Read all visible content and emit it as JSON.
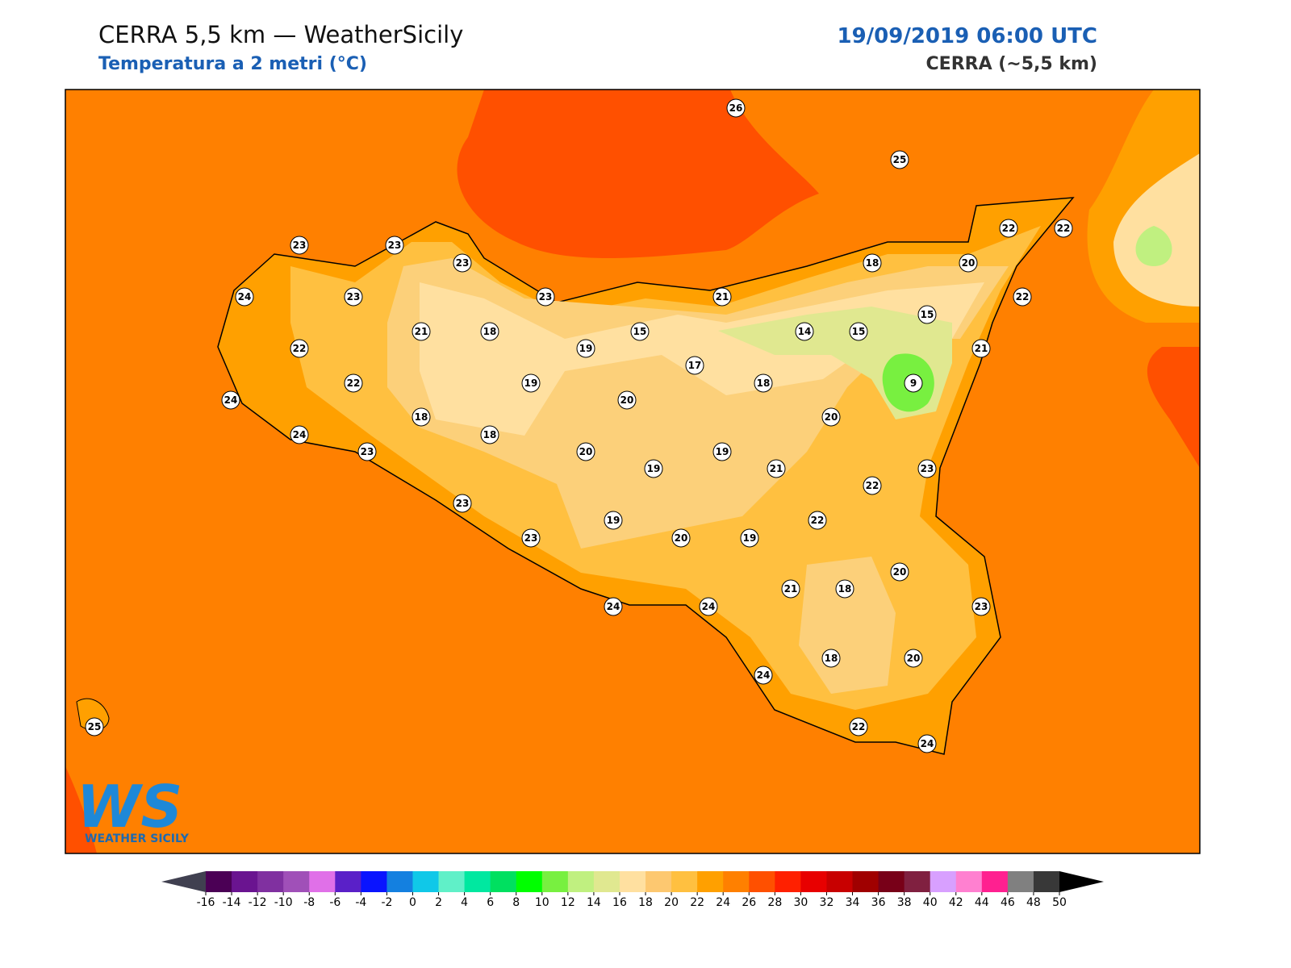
{
  "header": {
    "title": "CERRA 5,5 km — WeatherSicily",
    "subtitle": "Temperatura a 2 metri (°C)",
    "date": "19/09/2019 06:00 UTC",
    "model": "CERRA (~5,5 km)"
  },
  "logo": {
    "mark": "WS",
    "name": "WEATHER SICILY"
  },
  "stations": [
    26,
    25,
    23,
    23,
    23,
    24,
    23,
    23,
    21,
    18,
    20,
    22,
    22,
    22,
    15,
    21,
    18,
    19,
    15,
    14,
    15,
    22,
    21,
    17,
    22,
    19,
    18,
    9,
    24,
    20,
    18,
    20,
    24,
    18,
    23,
    20,
    19,
    19,
    21,
    23,
    22,
    23,
    19,
    22,
    23,
    20,
    19,
    20,
    21,
    18,
    24,
    24,
    23,
    24,
    18,
    20,
    22,
    24,
    25
  ],
  "colorbar": {
    "ticks": [
      -16,
      -14,
      -12,
      -10,
      -8,
      -6,
      -4,
      -2,
      0,
      2,
      4,
      6,
      8,
      10,
      12,
      14,
      16,
      18,
      20,
      22,
      24,
      26,
      28,
      30,
      32,
      34,
      36,
      38,
      40,
      42,
      44,
      46,
      48,
      50
    ],
    "colors": [
      "#4b0055",
      "#6a1490",
      "#8030a0",
      "#a050b8",
      "#e070e8",
      "#5a20c8",
      "#0a14ff",
      "#1480e0",
      "#10c8e8",
      "#60f0c8",
      "#00e8a0",
      "#00e060",
      "#00ff00",
      "#78f040",
      "#c0f080",
      "#e0e890",
      "#ffe0a0",
      "#fdc870",
      "#ffc040",
      "#ffa000",
      "#ff8000",
      "#ff5000",
      "#ff2000",
      "#e80000",
      "#c80000",
      "#a00000",
      "#780018",
      "#802040",
      "#d8a0ff",
      "#ff80d0",
      "#ff2090",
      "#808080",
      "#383838"
    ],
    "under": "#404050",
    "over": "#000000"
  }
}
